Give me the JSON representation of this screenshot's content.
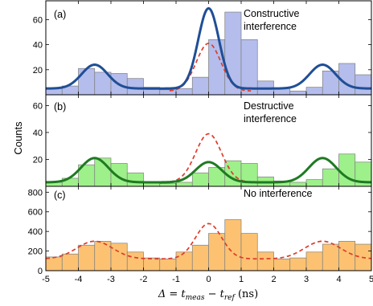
{
  "figure": {
    "ylabel": "Counts",
    "xlabel_prefix": "Δ = t",
    "xlabel_meas": "meas",
    "xlabel_minus": " − t",
    "xlabel_ref": "ref",
    "xlabel_units": " (ns)"
  },
  "chart_data": [
    {
      "type": "bar",
      "panel_label": "(a)",
      "annotation": [
        "Constructive",
        "interference"
      ],
      "xlim": [
        -5,
        5
      ],
      "ylim": [
        0,
        75
      ],
      "yticks": [
        0,
        20,
        40,
        60
      ],
      "xticks": [
        -5,
        -4,
        -3,
        -2,
        -1,
        0,
        1,
        2,
        3,
        4,
        5
      ],
      "colors": {
        "bar": "#b4bdeb",
        "bar_edge": "#7f7f7f",
        "fit": "#1f4e96",
        "reference": "#e03a2b"
      },
      "bins": {
        "start": -5,
        "width": 0.5
      },
      "bar_values": [
        5,
        7,
        21,
        18,
        17,
        13,
        6,
        4,
        5,
        14,
        44,
        66,
        44,
        11,
        5,
        3,
        6,
        19,
        25,
        16,
        6
      ],
      "fit_curve": {
        "baseline": 5,
        "peaks": [
          {
            "center": -3.5,
            "height": 19,
            "sigma": 0.4
          },
          {
            "center": 0,
            "height": 64,
            "sigma": 0.32
          },
          {
            "center": 3.5,
            "height": 19,
            "sigma": 0.4
          }
        ]
      },
      "reference_curve": {
        "baseline": 3,
        "peaks": [
          {
            "center": 0,
            "height": 38,
            "sigma": 0.38
          }
        ],
        "x_range": [
          -1.2,
          1.3
        ]
      }
    },
    {
      "type": "bar",
      "panel_label": "(b)",
      "annotation": [
        "Destructive",
        "interference"
      ],
      "xlim": [
        -5,
        5
      ],
      "ylim": [
        0,
        68
      ],
      "yticks": [
        0,
        20,
        40,
        60
      ],
      "xticks": [
        -5,
        -4,
        -3,
        -2,
        -1,
        0,
        1,
        2,
        3,
        4,
        5
      ],
      "colors": {
        "bar": "#9ef08a",
        "bar_edge": "#7f7f7f",
        "fit": "#1f7a22",
        "reference": "#e03a2b"
      },
      "bins": {
        "start": -5,
        "width": 0.5
      },
      "bar_values": [
        3,
        6,
        16,
        21,
        17,
        10,
        3,
        2,
        3,
        10,
        14,
        19,
        17,
        7,
        4,
        3,
        5,
        13,
        24,
        18,
        8
      ],
      "fit_curve": {
        "baseline": 3,
        "peaks": [
          {
            "center": -3.5,
            "height": 18,
            "sigma": 0.42
          },
          {
            "center": 0,
            "height": 15,
            "sigma": 0.4
          },
          {
            "center": 3.5,
            "height": 18,
            "sigma": 0.42
          }
        ]
      },
      "reference_curve": {
        "baseline": 3,
        "peaks": [
          {
            "center": 0,
            "height": 36,
            "sigma": 0.4
          }
        ],
        "x_range": [
          -1.4,
          1.5
        ]
      }
    },
    {
      "type": "bar",
      "panel_label": "(c)",
      "annotation": [
        "No interference"
      ],
      "xlim": [
        -5,
        5
      ],
      "ylim": [
        0,
        860
      ],
      "yticks": [
        0,
        200,
        400,
        600,
        800
      ],
      "xticks": [
        -5,
        -4,
        -3,
        -2,
        -1,
        0,
        1,
        2,
        3,
        4,
        5
      ],
      "colors": {
        "bar": "#fcc272",
        "bar_edge": "#7f7f7f",
        "reference": "#e03a2b"
      },
      "bins": {
        "start": -5,
        "width": 0.5
      },
      "bar_values": [
        140,
        170,
        260,
        300,
        280,
        190,
        130,
        120,
        190,
        260,
        380,
        520,
        380,
        190,
        120,
        130,
        190,
        270,
        300,
        270,
        150
      ],
      "reference_curve": {
        "baseline": 120,
        "peaks": [
          {
            "center": -3.5,
            "height": 180,
            "sigma": 0.55
          },
          {
            "center": 0,
            "height": 360,
            "sigma": 0.4
          },
          {
            "center": 3.5,
            "height": 180,
            "sigma": 0.55
          }
        ]
      }
    }
  ]
}
